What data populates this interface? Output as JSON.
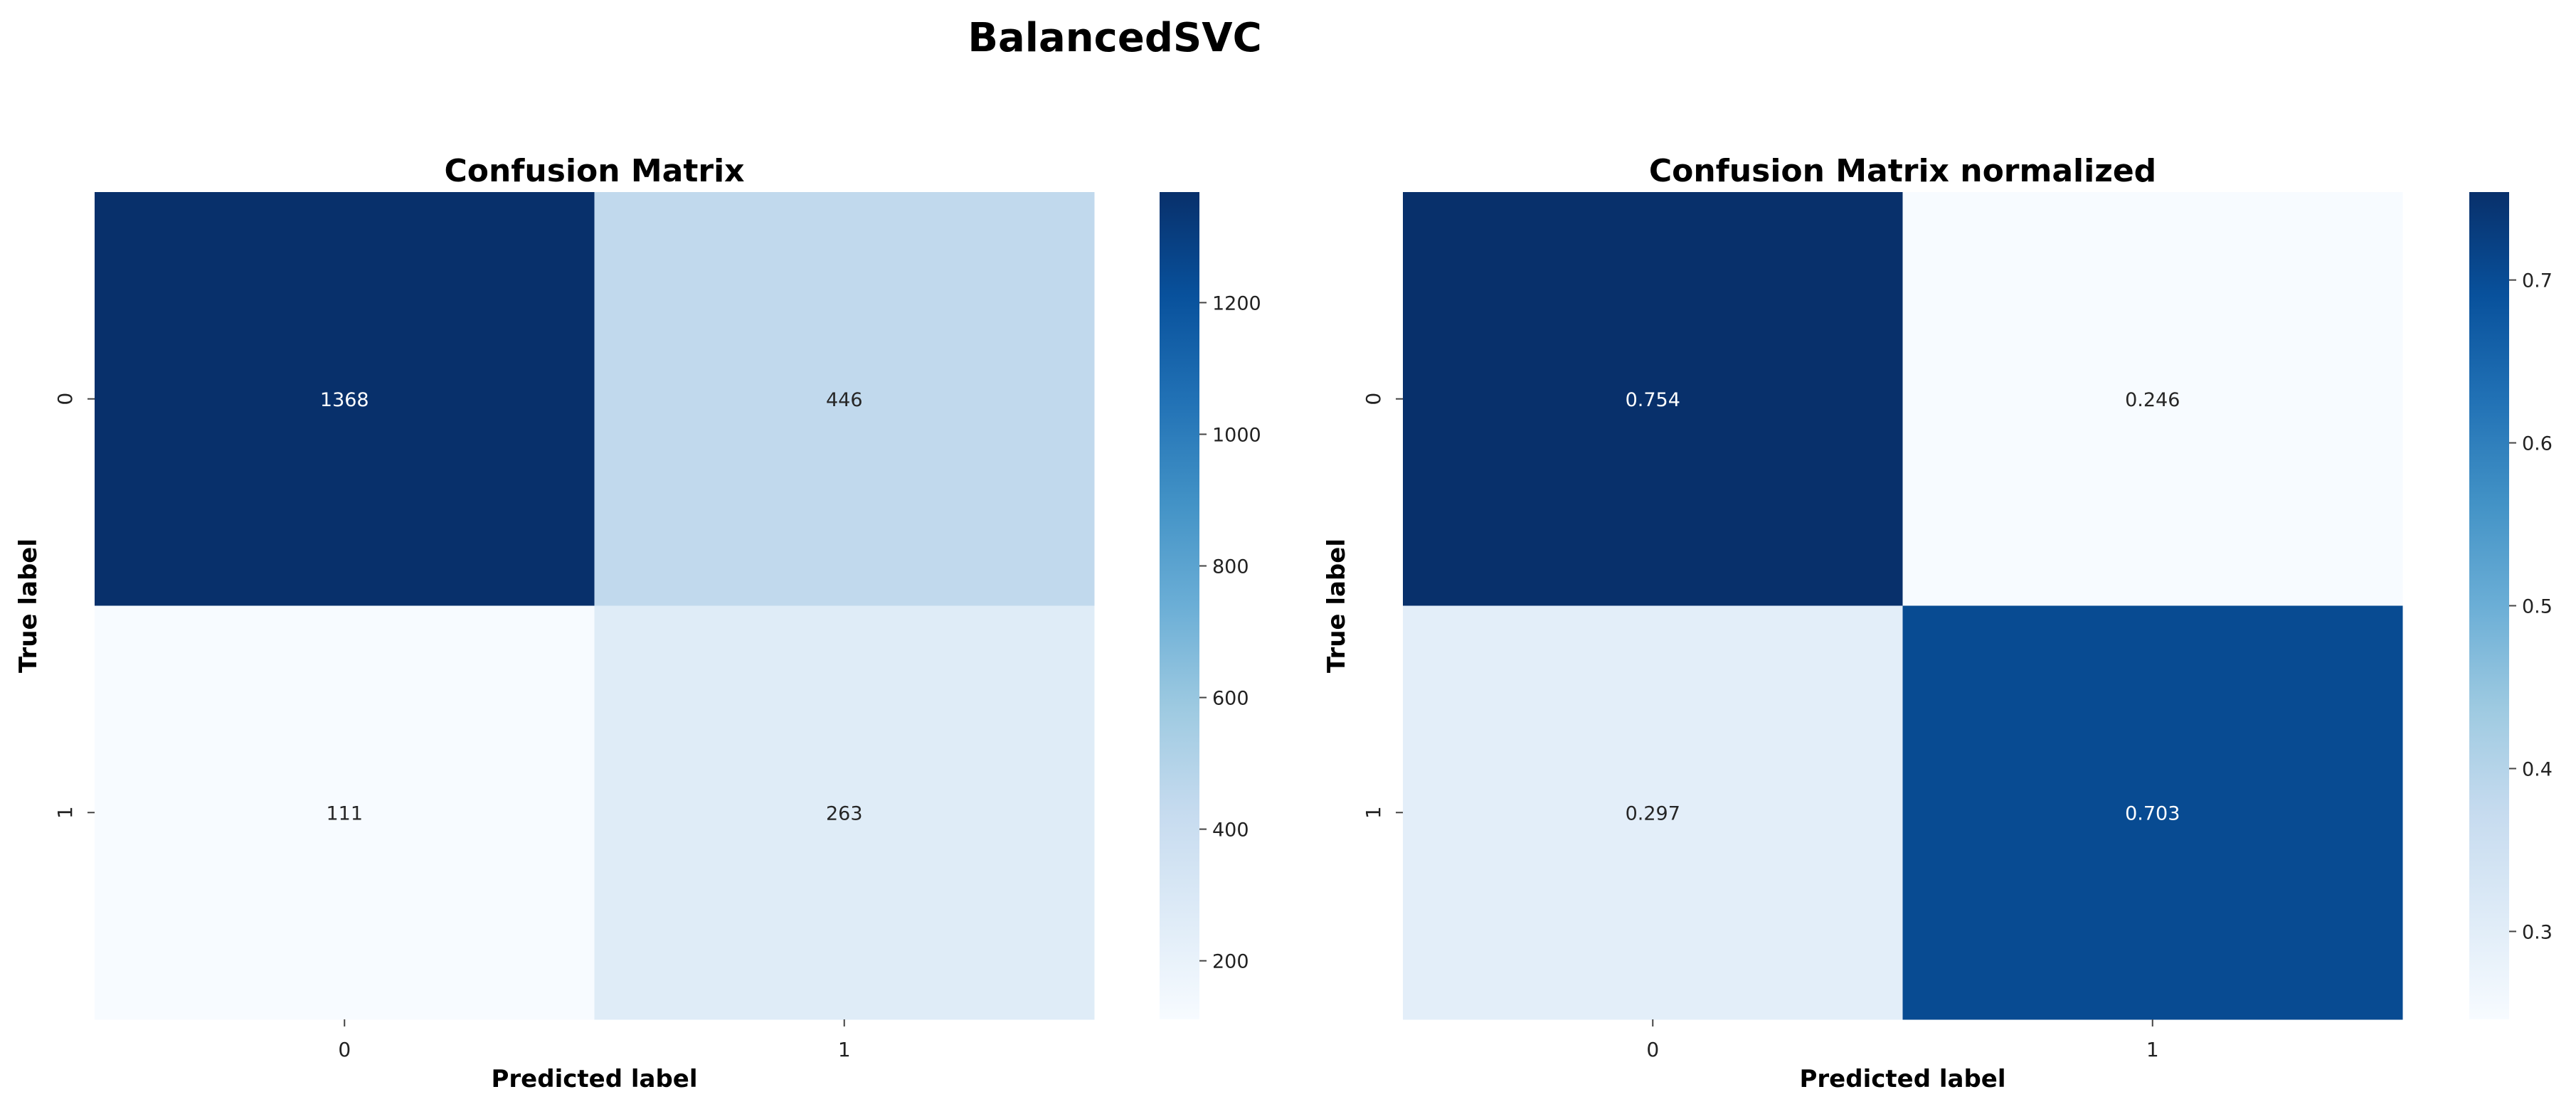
{
  "figure": {
    "suptitle": "BalancedSVC"
  },
  "chart_data": [
    {
      "type": "heatmap",
      "title": "Confusion Matrix",
      "xlabel": "Predicted label",
      "ylabel": "True label",
      "x_categories": [
        "0",
        "1"
      ],
      "y_categories": [
        "0",
        "1"
      ],
      "values": [
        [
          1368,
          446
        ],
        [
          111,
          263
        ]
      ],
      "annotations": [
        [
          "1368",
          "446"
        ],
        [
          "111",
          "263"
        ]
      ],
      "colormap": "Blues",
      "colorbar": {
        "range": [
          111,
          1368
        ],
        "ticks": [
          200,
          400,
          600,
          800,
          1000,
          1200
        ]
      }
    },
    {
      "type": "heatmap",
      "title": "Confusion Matrix normalized",
      "xlabel": "Predicted label",
      "ylabel": "True label",
      "x_categories": [
        "0",
        "1"
      ],
      "y_categories": [
        "0",
        "1"
      ],
      "values": [
        [
          0.754,
          0.246
        ],
        [
          0.297,
          0.703
        ]
      ],
      "annotations": [
        [
          "0.754",
          "0.246"
        ],
        [
          "0.297",
          "0.703"
        ]
      ],
      "colormap": "Blues",
      "colorbar": {
        "range": [
          0.246,
          0.754
        ],
        "ticks": [
          0.3,
          0.4,
          0.5,
          0.6,
          0.7
        ],
        "tick_labels": [
          "0.3",
          "0.4",
          "0.5",
          "0.6",
          "0.7"
        ]
      }
    }
  ]
}
